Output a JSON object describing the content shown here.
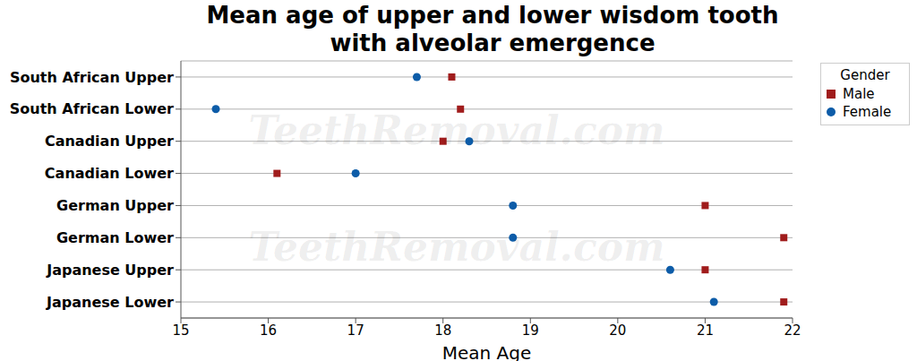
{
  "chart_data": {
    "type": "scatter",
    "title": "Mean age of upper and lower wisdom tooth\nwith alveolar emergence",
    "x_label": "Mean Age",
    "legend_title": "Gender",
    "annotations": [
      "TeethRemoval.com",
      "TeethRemoval.com"
    ],
    "categories": [
      "South African Upper",
      "South African Lower",
      "Canadian Upper",
      "Canadian Lower",
      "German Upper",
      "German Lower",
      "Japanese Upper",
      "Japanese Lower"
    ],
    "series": [
      {
        "name": "Male",
        "color": "#a01c1c",
        "marker": "square",
        "values": [
          18.1,
          18.2,
          18.0,
          16.1,
          21.0,
          21.9,
          21.0,
          21.9
        ]
      },
      {
        "name": "Female",
        "color": "#0d5ca8",
        "marker": "circle",
        "values": [
          17.7,
          15.4,
          18.3,
          17.0,
          18.8,
          18.8,
          20.6,
          21.1
        ]
      }
    ],
    "xlim": [
      15,
      22
    ],
    "xticks": [
      15,
      16,
      17,
      18,
      19,
      20,
      21,
      22
    ],
    "grid": true,
    "legend": "right"
  }
}
